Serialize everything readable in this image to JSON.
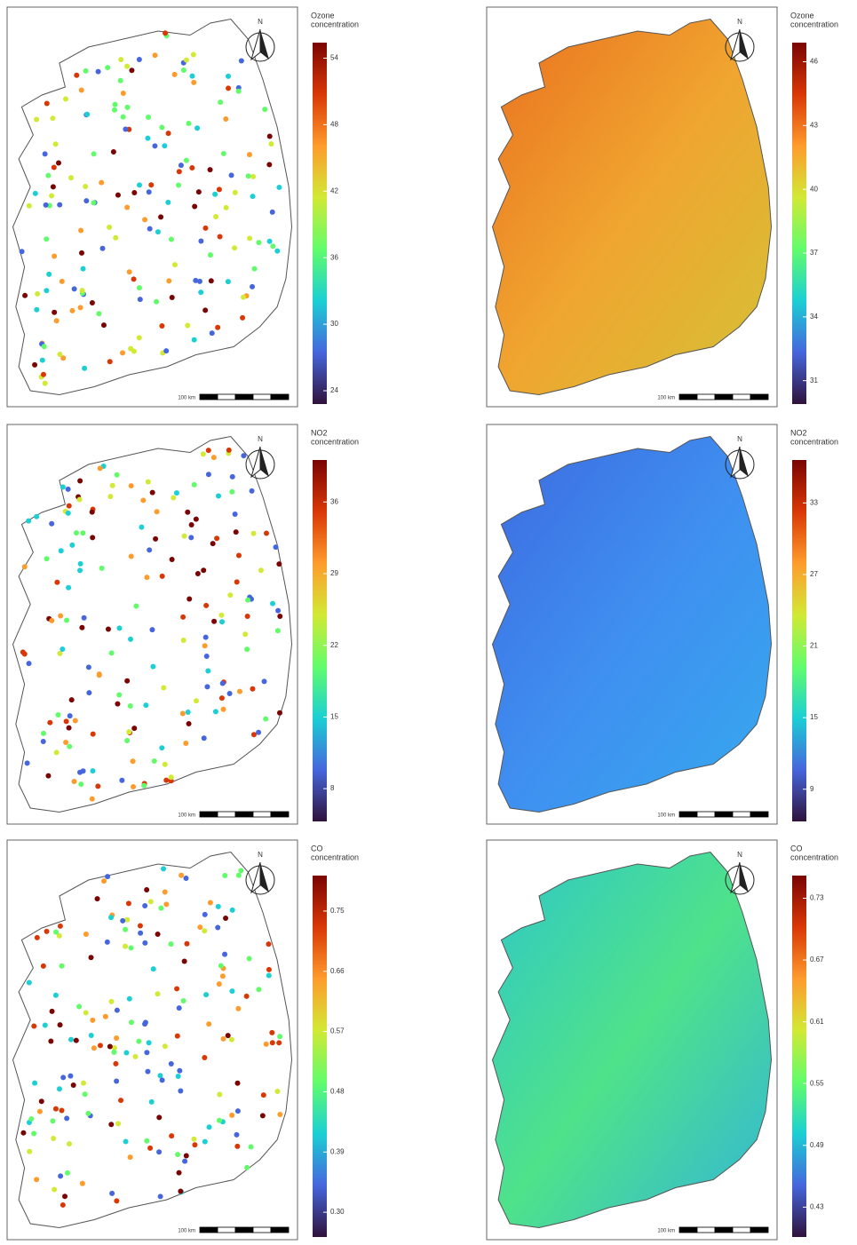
{
  "palette": [
    "#30123b",
    "#4666dd",
    "#1bcfd4",
    "#62fc6b",
    "#d2e935",
    "#fe9b2d",
    "#d93806",
    "#7a0403"
  ],
  "panels": [
    {
      "kind": "points",
      "north": "N",
      "scale": "100 km",
      "colorbar": {
        "title": [
          "Ozone",
          "concentration"
        ],
        "lim": [
          22.8,
          55.4
        ],
        "ticks": [
          54,
          48,
          42,
          36,
          30,
          24
        ]
      }
    },
    {
      "kind": "surface",
      "fill": [
        "#e9701e",
        "#f0a530",
        "#d4c236"
      ],
      "north": "N",
      "scale": "100 km",
      "colorbar": {
        "title": [
          "Ozone",
          "concentration"
        ],
        "lim": [
          29.9,
          46.9
        ],
        "ticks": [
          46,
          43,
          40,
          37,
          34,
          31
        ]
      }
    },
    {
      "kind": "points",
      "north": "N",
      "scale": "100 km",
      "colorbar": {
        "title": [
          "NO2",
          "concentration"
        ],
        "lim": [
          4.8,
          40.1
        ],
        "ticks": [
          36,
          29,
          22,
          15,
          8
        ]
      }
    },
    {
      "kind": "surface",
      "fill": [
        "#3d6ae0",
        "#3f8ff0",
        "#36a9ee"
      ],
      "north": "N",
      "scale": "100 km",
      "colorbar": {
        "title": [
          "NO2",
          "concentration"
        ],
        "lim": [
          6.3,
          36.6
        ],
        "ticks": [
          33,
          27,
          21,
          15,
          9
        ]
      }
    },
    {
      "kind": "points",
      "north": "N",
      "scale": "100 km",
      "colorbar": {
        "title": [
          "CO",
          "concentration"
        ],
        "lim": [
          0.263,
          0.803
        ],
        "ticks": [
          0.75,
          0.66,
          0.57,
          0.48,
          0.39,
          {
            "value": 0.3,
            "label": "0.30"
          }
        ]
      }
    },
    {
      "kind": "surface",
      "fill": [
        "#2ec7c9",
        "#4fe28a",
        "#32b5d8"
      ],
      "north": "N",
      "scale": "100 km",
      "colorbar": {
        "title": [
          "CO",
          "concentration"
        ],
        "lim": [
          0.401,
          0.752
        ],
        "ticks": [
          0.73,
          0.67,
          0.61,
          0.55,
          0.49,
          0.43
        ]
      }
    }
  ]
}
